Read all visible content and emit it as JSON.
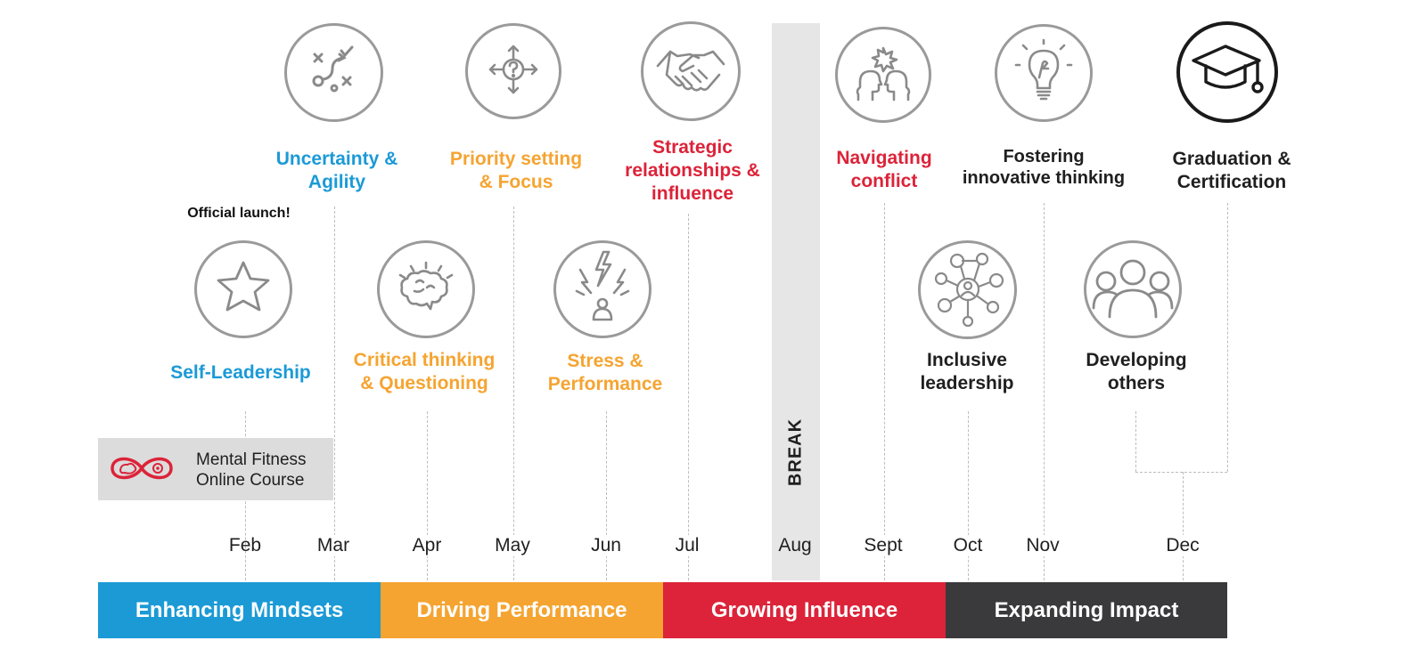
{
  "milestones": {
    "official_launch": "Official launch!",
    "self_leadership": "Self-Leadership",
    "uncertainty_line1": "Uncertainty &",
    "uncertainty_line2": "Agility",
    "critical_line1": "Critical thinking",
    "critical_line2": "& Questioning",
    "priority_line1": "Priority setting",
    "priority_line2": "& Focus",
    "stress_line1": "Stress &",
    "stress_line2": "Performance",
    "strategic_line1": "Strategic",
    "strategic_line2": "relationships &",
    "strategic_line3": "influence",
    "navigating_line1": "Navigating",
    "navigating_line2": "conflict",
    "inclusive_line1": "Inclusive",
    "inclusive_line2": "leadership",
    "fostering_line1": "Fostering",
    "fostering_line2": "innovative thinking",
    "developing_line1": "Developing",
    "developing_line2": "others",
    "graduation_line1": "Graduation &",
    "graduation_line2": "Certification"
  },
  "course_box": {
    "line1": "Mental Fitness",
    "line2": "Online Course"
  },
  "break_label": "BREAK",
  "months": [
    "Feb",
    "Mar",
    "Apr",
    "May",
    "Jun",
    "Jul",
    "Aug",
    "Sept",
    "Oct",
    "Nov",
    "Dec"
  ],
  "phases": [
    "Enhancing Mindsets",
    "Driving Performance",
    "Growing Influence",
    "Expanding Impact"
  ],
  "colors": {
    "blue": "#1b9ad6",
    "orange": "#f5a431",
    "red": "#dc2339",
    "dark": "#3a3a3c",
    "break_gray": "#e6e6e7",
    "course_gray": "#dcdcdc"
  },
  "icons": [
    "star-icon",
    "strategy-play-icon",
    "brain-icon",
    "question-arrows-icon",
    "lightning-person-icon",
    "handshake-icon",
    "conflict-heads-icon",
    "network-people-icon",
    "lightbulb-icon",
    "group-people-icon",
    "graduation-cap-icon",
    "infinity-brain-icon"
  ]
}
